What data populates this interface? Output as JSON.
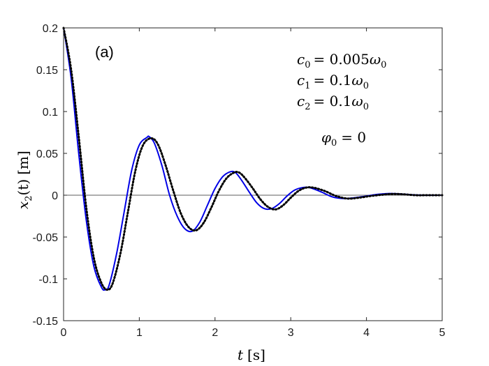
{
  "chart_data": {
    "type": "line",
    "panel_label": "(a)",
    "xlabel_var": "t",
    "xlabel_unit": "[s]",
    "ylabel_var": "x",
    "ylabel_sub": "2",
    "ylabel_arg": "(t)",
    "ylabel_unit": "[m]",
    "xlim": [
      0,
      5
    ],
    "ylim": [
      -0.15,
      0.2
    ],
    "xticks": [
      0,
      1,
      2,
      3,
      4,
      5
    ],
    "xtick_labels": [
      "0",
      "1",
      "2",
      "3",
      "4",
      "5"
    ],
    "yticks": [
      -0.15,
      -0.1,
      -0.05,
      0,
      0.05,
      0.1,
      0.15,
      0.2
    ],
    "ytick_labels": [
      "-0.15",
      "-0.1",
      "-0.05",
      "0",
      "0.05",
      "0.1",
      "0.15",
      "0.2"
    ],
    "zero_line": true,
    "grid": false,
    "annotations": [
      {
        "var": "c",
        "sub": "0",
        "rhs": "= 0.005",
        "unit_var": "ω",
        "unit_sub": "0"
      },
      {
        "var": "c",
        "sub": "1",
        "rhs": "= 0.1",
        "unit_var": "ω",
        "unit_sub": "0"
      },
      {
        "var": "c",
        "sub": "2",
        "rhs": "= 0.1",
        "unit_var": "ω",
        "unit_sub": "0"
      },
      {
        "var": "φ",
        "sub": "0",
        "rhs": "= 0",
        "unit_var": "",
        "unit_sub": ""
      }
    ],
    "series": [
      {
        "color": "#0000e6",
        "style": "solid",
        "x": [
          0,
          0.1,
          0.2,
          0.3,
          0.4,
          0.5,
          0.55,
          0.6,
          0.7,
          0.8,
          0.9,
          1.0,
          1.1,
          1.13,
          1.2,
          1.3,
          1.4,
          1.5,
          1.6,
          1.7,
          1.8,
          1.9,
          2.0,
          2.1,
          2.2,
          2.27,
          2.35,
          2.45,
          2.55,
          2.65,
          2.75,
          2.85,
          2.95,
          3.05,
          3.15,
          3.25,
          3.4,
          3.55,
          3.7,
          3.85,
          4.0,
          4.15,
          4.3,
          4.45,
          4.6,
          4.75,
          4.9,
          5.0
        ],
        "y": [
          0.2,
          0.14,
          0.05,
          -0.03,
          -0.085,
          -0.11,
          -0.113,
          -0.108,
          -0.07,
          -0.02,
          0.03,
          0.06,
          0.069,
          0.07,
          0.062,
          0.035,
          0.0,
          -0.025,
          -0.04,
          -0.043,
          -0.032,
          -0.012,
          0.008,
          0.022,
          0.028,
          0.027,
          0.018,
          0.004,
          -0.009,
          -0.016,
          -0.016,
          -0.01,
          -0.001,
          0.006,
          0.009,
          0.009,
          0.004,
          -0.002,
          -0.004,
          -0.003,
          -0.001,
          0.001,
          0.002,
          0.0015,
          0.0005,
          0.0,
          0.0,
          0.0
        ]
      },
      {
        "color": "#000000",
        "style": "dotted",
        "x": [
          0,
          0.1,
          0.2,
          0.3,
          0.4,
          0.5,
          0.58,
          0.65,
          0.75,
          0.85,
          0.95,
          1.05,
          1.16,
          1.25,
          1.35,
          1.45,
          1.55,
          1.65,
          1.75,
          1.85,
          1.95,
          2.05,
          2.15,
          2.25,
          2.32,
          2.4,
          2.5,
          2.6,
          2.7,
          2.8,
          2.9,
          3.0,
          3.1,
          3.2,
          3.3,
          3.45,
          3.6,
          3.75,
          3.9,
          4.05,
          4.2,
          4.35,
          4.5,
          4.65,
          4.8,
          5.0
        ],
        "y": [
          0.2,
          0.15,
          0.07,
          -0.015,
          -0.075,
          -0.105,
          -0.113,
          -0.105,
          -0.07,
          -0.02,
          0.03,
          0.06,
          0.068,
          0.06,
          0.035,
          0.005,
          -0.022,
          -0.038,
          -0.042,
          -0.033,
          -0.015,
          0.005,
          0.02,
          0.027,
          0.027,
          0.02,
          0.008,
          -0.005,
          -0.014,
          -0.017,
          -0.012,
          -0.003,
          0.005,
          0.009,
          0.009,
          0.005,
          -0.001,
          -0.004,
          -0.003,
          -0.001,
          0.0005,
          0.0015,
          0.001,
          0.0,
          0.0,
          0.0
        ]
      }
    ]
  }
}
